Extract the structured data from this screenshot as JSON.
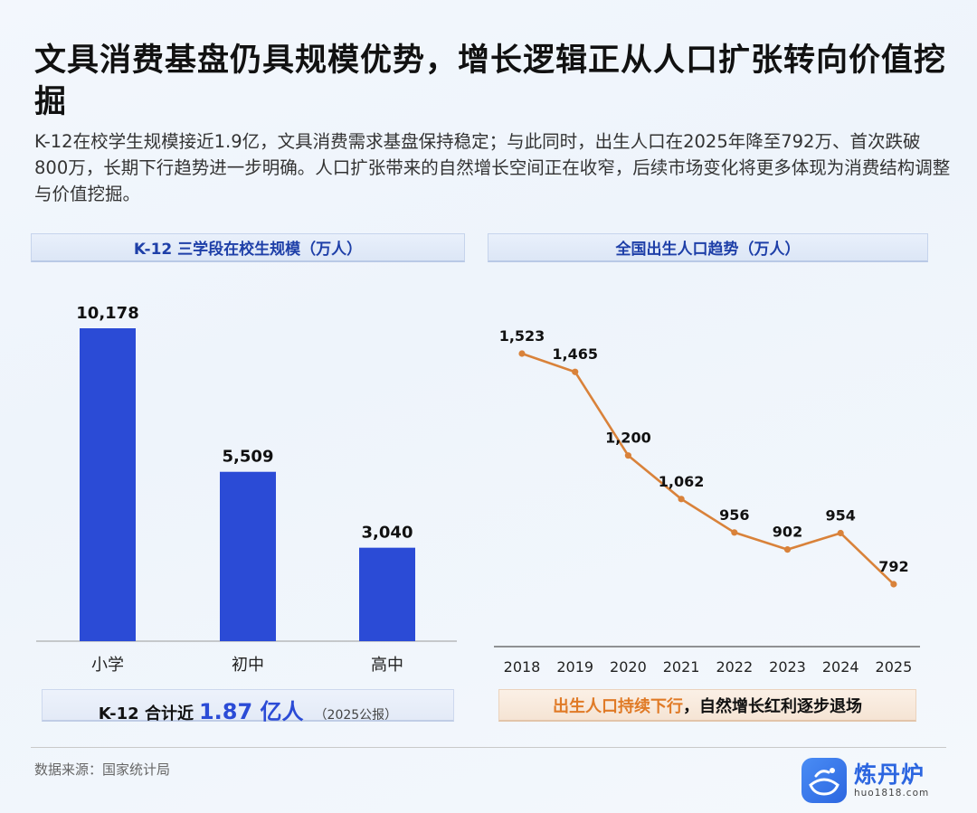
{
  "title": "文具消费基盘仍具规模优势，增长逻辑正从人口扩张转向价值挖掘",
  "intro": "K-12在校学生规模接近1.9亿，文具消费需求基盘保持稳定；与此同时，出生人口在2025年降至792万、首次跌破800万，长期下行趋势进一步明确。人口扩张带来的自然增长空间正在收窄，后续市场变化将更多体现为消费结构调整与价值挖掘。",
  "left_panel": {
    "header": "K-12 三学段在校生规模（万人）",
    "summary_prefix": "K-12 合计近",
    "summary_value": "1.87 亿人",
    "summary_note": "（2025公报）"
  },
  "right_panel": {
    "header": "全国出生人口趋势（万人）",
    "summary_highlight": "出生人口持续下行",
    "summary_rest": "，自然增长红利逐步退场"
  },
  "source": "数据来源：国家统计局",
  "logo": {
    "name": "炼丹炉",
    "url": "huo1818.com",
    "icon": "cauldron-logo-icon"
  },
  "colors": {
    "bar": "#2b4bd6",
    "line": "#d9823a",
    "accent_blue": "#1e3fa8",
    "accent_orange": "#e07a26"
  },
  "chart_data": [
    {
      "type": "bar",
      "title": "K-12 三学段在校生规模（万人）",
      "categories": [
        "小学",
        "初中",
        "高中"
      ],
      "values": [
        10178,
        5509,
        3040
      ],
      "value_labels": [
        "10,178",
        "5,509",
        "3,040"
      ],
      "ylim": [
        0,
        10178
      ],
      "grid": false
    },
    {
      "type": "line",
      "title": "全国出生人口趋势（万人）",
      "x": [
        "2018",
        "2019",
        "2020",
        "2021",
        "2022",
        "2023",
        "2024",
        "2025"
      ],
      "values": [
        1523,
        1465,
        1200,
        1062,
        956,
        902,
        954,
        792
      ],
      "value_labels": [
        "1,523",
        "1,465",
        "1,200",
        "1,062",
        "956",
        "902",
        "954",
        "792"
      ],
      "grid": false
    }
  ]
}
